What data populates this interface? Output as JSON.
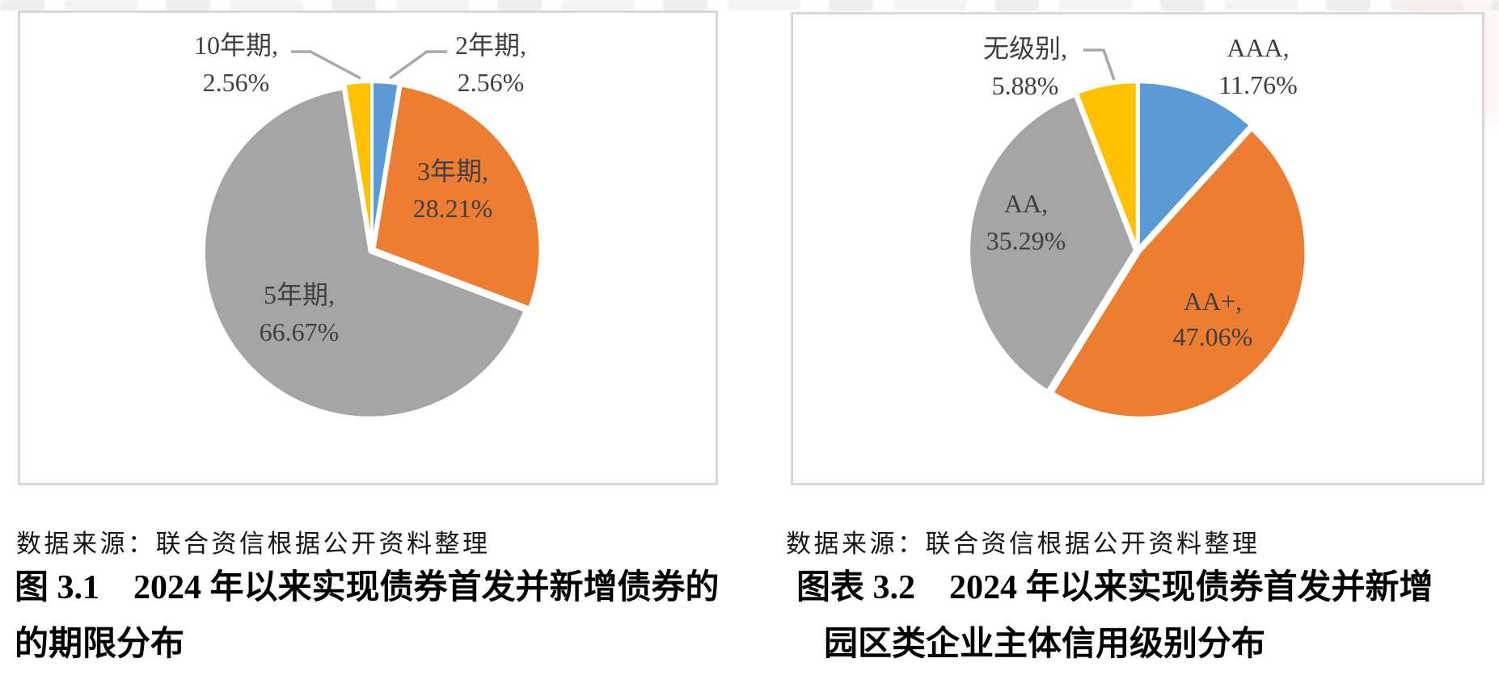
{
  "palette": {
    "blue": "#5B9BD5",
    "orange": "#ED7D31",
    "gray": "#A5A5A5",
    "yellow": "#FFC000",
    "slice_gap": "#FFFFFF",
    "leader_line": "#A8A8A8",
    "data_label_text": "#3F3F3F",
    "frame_border": "#D8D8D8",
    "caption_text": "#000000",
    "source_text": "#161616"
  },
  "chart_data": [
    {
      "type": "pie",
      "title": "图 3.1　2024 年以来实现债券首发并新增债券的的期限分布",
      "caption_line1": "图 3.1　2024 年以来实现债券首发并新增债券的",
      "caption_line2": "的期限分布",
      "source_note": "数据来源：联合资信根据公开资料整理",
      "unit": "%",
      "legend": "none",
      "start_angle_deg": 0,
      "direction": "clockwise",
      "categories": [
        "2年期",
        "3年期",
        "5年期",
        "10年期"
      ],
      "values": [
        2.56,
        28.21,
        66.67,
        2.56
      ],
      "colors": [
        "#5B9BD5",
        "#ED7D31",
        "#A5A5A5",
        "#FFC000"
      ],
      "data_labels": [
        {
          "line1": "2年期,",
          "line2": "2.56%"
        },
        {
          "line1": "3年期,",
          "line2": "28.21%"
        },
        {
          "line1": "5年期,",
          "line2": "66.67%"
        },
        {
          "line1": "10年期,",
          "line2": "2.56%"
        }
      ]
    },
    {
      "type": "pie",
      "title": "图表 3.2　2024 年以来实现债券首发并新增园区类企业主体信用级别分布",
      "caption_line1": "图表 3.2　2024 年以来实现债券首发并新增",
      "caption_line2": "园区类企业主体信用级别分布",
      "source_note": "数据来源：联合资信根据公开资料整理",
      "unit": "%",
      "legend": "none",
      "start_angle_deg": 0,
      "direction": "clockwise",
      "categories": [
        "AAA",
        "AA+",
        "AA",
        "无级别"
      ],
      "values": [
        11.76,
        47.06,
        35.29,
        5.88
      ],
      "colors": [
        "#5B9BD5",
        "#ED7D31",
        "#A5A5A5",
        "#FFC000"
      ],
      "data_labels": [
        {
          "line1": "AAA,",
          "line2": "11.76%"
        },
        {
          "line1": "AA+,",
          "line2": "47.06%"
        },
        {
          "line1": "AA,",
          "line2": "35.29%"
        },
        {
          "line1": "无级别,",
          "line2": "5.88%"
        }
      ]
    }
  ]
}
